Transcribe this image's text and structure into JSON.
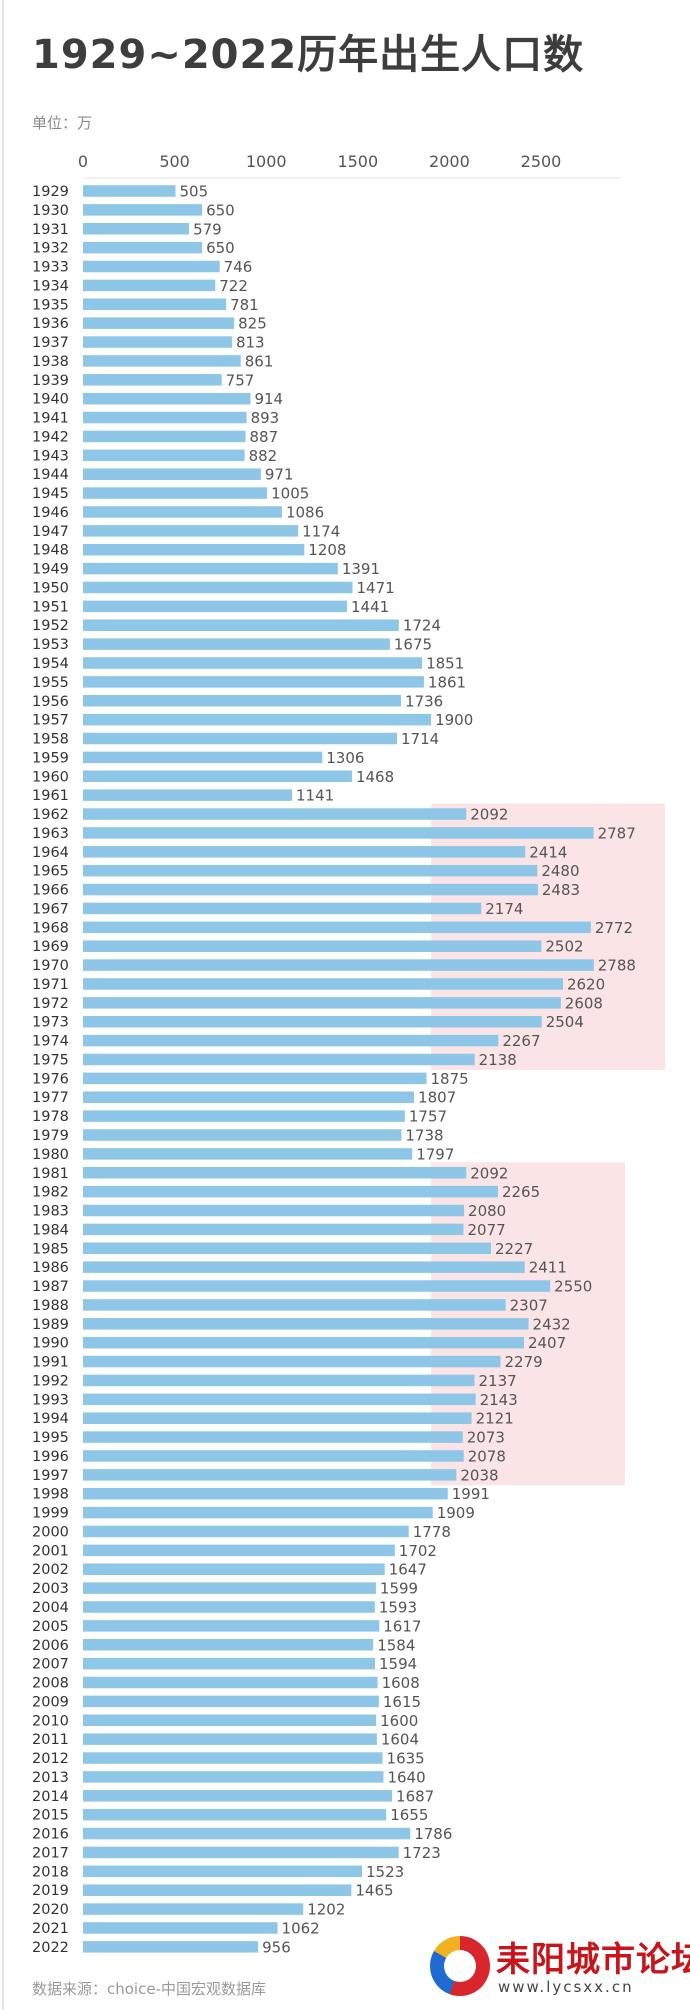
{
  "header": {
    "title": "1929~2022历年出生人口数",
    "unit": "单位：万"
  },
  "footer": {
    "source": "数据来源：choice-中国宏观数据库"
  },
  "watermark": {
    "name": "耒阳城市论坛",
    "url": "www.lycsxx.cn"
  },
  "colors": {
    "bar": "#8dc6e6",
    "highlight": "#fbe4e6",
    "text": "#333333"
  },
  "chart_data": {
    "type": "bar",
    "orientation": "horizontal",
    "title": "1929~2022历年出生人口数",
    "unit": "万",
    "xlim": [
      0,
      2800
    ],
    "xticks": [
      0,
      500,
      1000,
      1500,
      2000,
      2500
    ],
    "categories": [
      "1929",
      "1930",
      "1931",
      "1932",
      "1933",
      "1934",
      "1935",
      "1936",
      "1937",
      "1938",
      "1939",
      "1940",
      "1941",
      "1942",
      "1943",
      "1944",
      "1945",
      "1946",
      "1947",
      "1948",
      "1949",
      "1950",
      "1951",
      "1952",
      "1953",
      "1954",
      "1955",
      "1956",
      "1957",
      "1958",
      "1959",
      "1960",
      "1961",
      "1962",
      "1963",
      "1964",
      "1965",
      "1966",
      "1967",
      "1968",
      "1969",
      "1970",
      "1971",
      "1972",
      "1973",
      "1974",
      "1975",
      "1976",
      "1977",
      "1978",
      "1979",
      "1980",
      "1981",
      "1982",
      "1983",
      "1984",
      "1985",
      "1986",
      "1987",
      "1988",
      "1989",
      "1990",
      "1991",
      "1992",
      "1993",
      "1994",
      "1995",
      "1996",
      "1997",
      "1998",
      "1999",
      "2000",
      "2001",
      "2002",
      "2003",
      "2004",
      "2005",
      "2006",
      "2007",
      "2008",
      "2009",
      "2010",
      "2011",
      "2012",
      "2013",
      "2014",
      "2015",
      "2016",
      "2017",
      "2018",
      "2019",
      "2020",
      "2021",
      "2022"
    ],
    "values": [
      505,
      650,
      579,
      650,
      746,
      722,
      781,
      825,
      813,
      861,
      757,
      914,
      893,
      887,
      882,
      971,
      1005,
      1086,
      1174,
      1208,
      1391,
      1471,
      1441,
      1724,
      1675,
      1851,
      1861,
      1736,
      1900,
      1714,
      1306,
      1468,
      1141,
      2092,
      2787,
      2414,
      2480,
      2483,
      2174,
      2772,
      2502,
      2788,
      2620,
      2608,
      2504,
      2267,
      2138,
      1875,
      1807,
      1757,
      1738,
      1797,
      2092,
      2265,
      2080,
      2077,
      2227,
      2411,
      2550,
      2307,
      2432,
      2407,
      2279,
      2137,
      2143,
      2121,
      2073,
      2078,
      2038,
      1991,
      1909,
      1778,
      1702,
      1647,
      1599,
      1593,
      1617,
      1584,
      1594,
      1608,
      1615,
      1600,
      1604,
      1635,
      1640,
      1687,
      1655,
      1786,
      1723,
      1523,
      1465,
      1202,
      1062,
      956
    ],
    "highlight_ranges": [
      [
        "1962",
        "1975"
      ],
      [
        "1981",
        "1997"
      ]
    ]
  }
}
